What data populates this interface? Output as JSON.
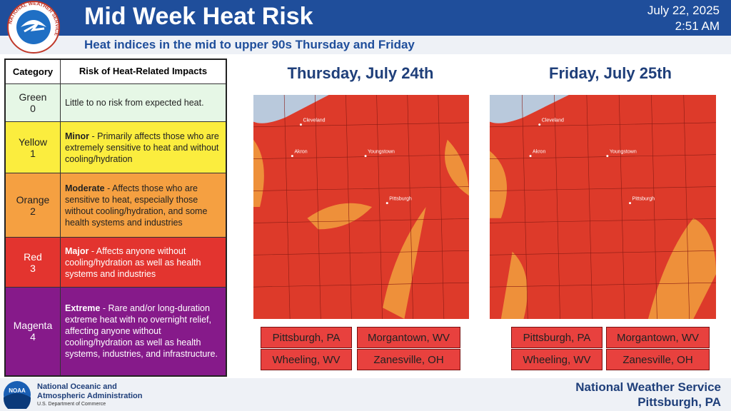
{
  "header": {
    "logo_text": "NATIONAL WEATHER SERVICE",
    "title": "Mid Week Heat Risk",
    "date": "July 22, 2025",
    "time": "2:51 AM",
    "subtitle": "Heat indices in the mid to upper 90s Thursday and Friday"
  },
  "table": {
    "headers": [
      "Category",
      "Risk of Heat-Related Impacts"
    ],
    "rows": [
      {
        "category": "Green",
        "level": 0,
        "label": "",
        "description": "Little to no risk from expected heat."
      },
      {
        "category": "Yellow",
        "level": 1,
        "label": "Minor",
        "description": "- Primarily affects those who are extremely sensitive to heat and without cooling/hydration"
      },
      {
        "category": "Orange",
        "level": 2,
        "label": "Moderate",
        "description": "- Affects those who are sensitive to heat, especially those without cooling/hydration, and some health systems and industries"
      },
      {
        "category": "Red",
        "level": 3,
        "label": "Major",
        "description": "- Affects anyone without cooling/hydration as well as health systems and industries"
      },
      {
        "category": "Magenta",
        "level": 4,
        "label": "Extreme",
        "description": "- Rare and/or long-duration extreme heat with no overnight relief, affecting anyone without cooling/hydration as well as health systems, industries, and infrastructure."
      }
    ]
  },
  "panels": [
    {
      "title": "Thursday, July 24th",
      "places": [
        "Cleveland",
        "Akron",
        "Youngstown",
        "Pittsburgh"
      ],
      "cities": [
        "Pittsburgh, PA",
        "Morgantown, WV",
        "Wheeling, WV",
        "Zanesville, OH"
      ]
    },
    {
      "title": "Friday, July 25th",
      "places": [
        "Cleveland",
        "Akron",
        "Youngstown",
        "Pittsburgh"
      ],
      "cities": [
        "Pittsburgh, PA",
        "Morgantown, WV",
        "Wheeling, WV",
        "Zanesville, OH"
      ]
    }
  ],
  "footer": {
    "logo_text": "NOAA",
    "agency_line1": "National Oceanic and",
    "agency_line2": "Atmospheric Administration",
    "department": "U.S. Department of Commerce",
    "office": "National Weather Service",
    "location": "Pittsburgh, PA"
  }
}
